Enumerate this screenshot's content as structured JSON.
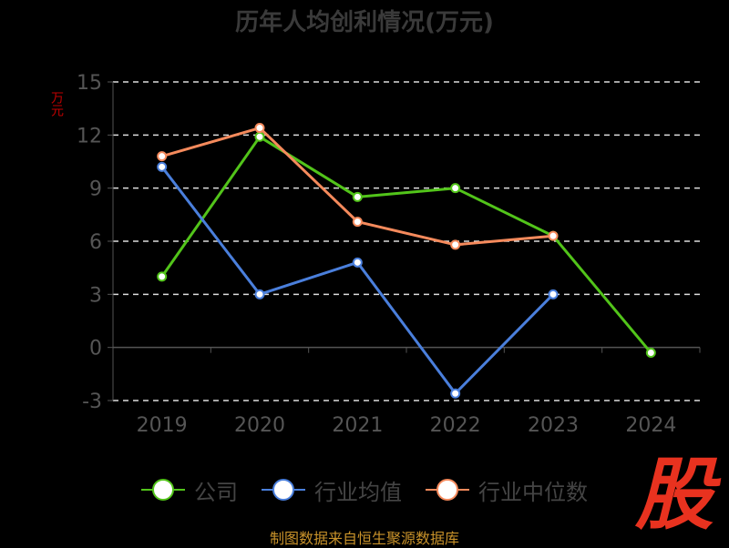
{
  "page": {
    "title": "历年人均创利情况(万元)",
    "unit_label": "万元",
    "source": "制图数据来自恒生聚源数据库",
    "logo_text": "股"
  },
  "colors": {
    "grid": "#dddddd",
    "axis": "#555555",
    "tick_text": "#555555"
  },
  "chart_data": {
    "type": "line",
    "title": "历年人均创利情况(万元)",
    "ylabel": "万元",
    "xlabel": "",
    "categories": [
      "2019",
      "2020",
      "2021",
      "2022",
      "2023",
      "2024"
    ],
    "ylim": [
      -3,
      15
    ],
    "yticks": [
      -3,
      0,
      3,
      6,
      9,
      12,
      15
    ],
    "grid": true,
    "legend": "bottom-center",
    "series": [
      {
        "name": "公司",
        "color": "#52c41a",
        "values": [
          4.0,
          11.9,
          8.5,
          9.0,
          6.3,
          -0.3
        ]
      },
      {
        "name": "行业均值",
        "color": "#4a7fdc",
        "values": [
          10.2,
          3.0,
          4.8,
          -2.6,
          3.0,
          null
        ]
      },
      {
        "name": "行业中位数",
        "color": "#f58a5c",
        "values": [
          10.8,
          12.4,
          7.1,
          5.8,
          6.3,
          null
        ]
      }
    ]
  }
}
